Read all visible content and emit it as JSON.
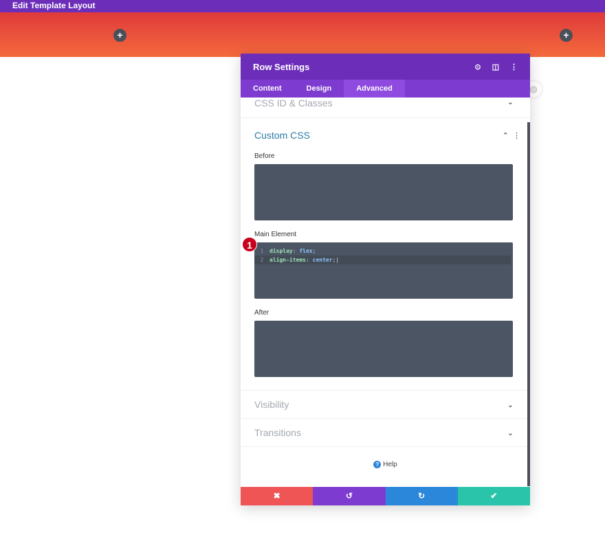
{
  "topbar": {
    "title": "Edit Template Layout"
  },
  "modal": {
    "title": "Row Settings",
    "tabs": [
      "Content",
      "Design",
      "Advanced"
    ],
    "active_tab": "Advanced",
    "sections": {
      "css_id": "CSS ID & Classes",
      "custom_css": "Custom CSS",
      "visibility": "Visibility",
      "transitions": "Transitions"
    },
    "fields": {
      "before": "Before",
      "main": "Main Element",
      "after": "After"
    },
    "code": [
      {
        "n": "1",
        "prop": "display",
        "val": "flex"
      },
      {
        "n": "2",
        "prop": "align-items",
        "val": "center"
      }
    ],
    "help": "Help",
    "badge": "1"
  },
  "colors": {
    "header": "#6c2eb9",
    "cancel": "#ef5555",
    "undo": "#7e3bd0",
    "redo": "#2b87da",
    "save": "#29c4a9"
  }
}
